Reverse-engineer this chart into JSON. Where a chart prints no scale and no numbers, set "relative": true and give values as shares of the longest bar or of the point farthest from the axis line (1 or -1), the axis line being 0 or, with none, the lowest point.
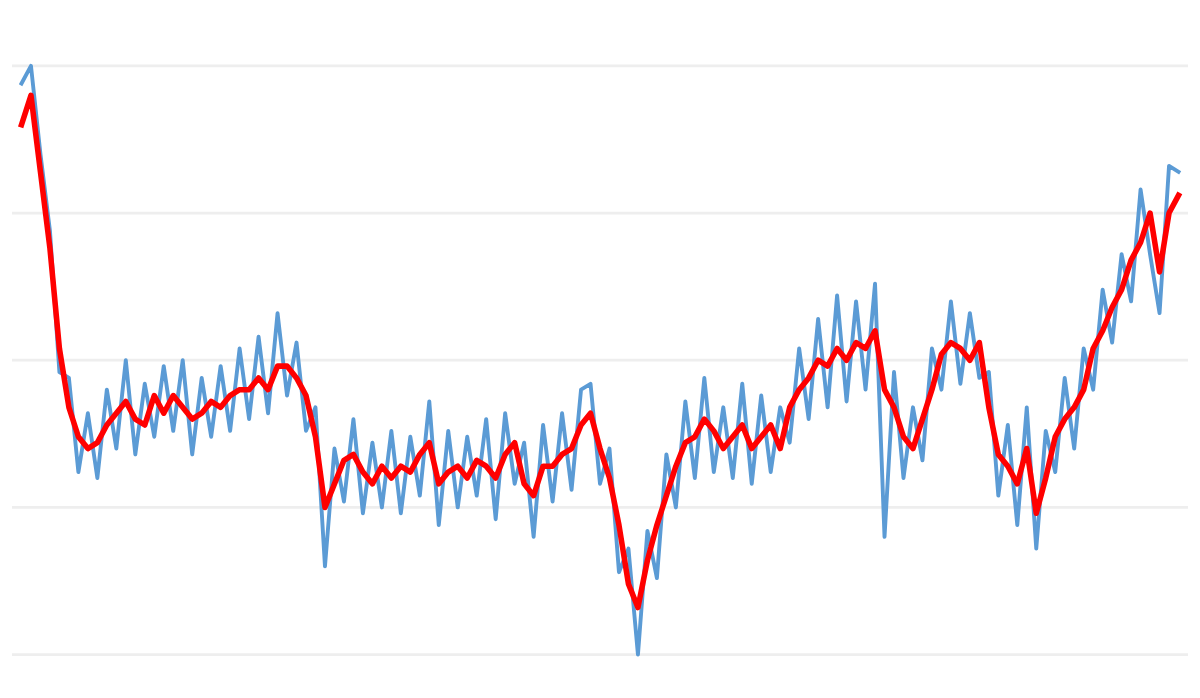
{
  "chart_data": {
    "type": "line",
    "relative": true,
    "grid": "y",
    "tick_labels": false,
    "categories": [
      null,
      null,
      null,
      null,
      null,
      null,
      null,
      null,
      null,
      null,
      null,
      null,
      null,
      null,
      null,
      null,
      null,
      null,
      null,
      null,
      null,
      null,
      null,
      null,
      null,
      null,
      null,
      null,
      null,
      null,
      null,
      null,
      null,
      null,
      null,
      null,
      null,
      null,
      null,
      null,
      null,
      null,
      null,
      null,
      null,
      null,
      null,
      null,
      null,
      null,
      null,
      null,
      null,
      null,
      null,
      null,
      null,
      null,
      null,
      null,
      null,
      null,
      null,
      null,
      null,
      null,
      null,
      null,
      null,
      null,
      null,
      null,
      null,
      null,
      null,
      null,
      null,
      null,
      null,
      null,
      null,
      null,
      null,
      null,
      null,
      null,
      null,
      null,
      null,
      null,
      null,
      null,
      null,
      null,
      null,
      null,
      null,
      null,
      null,
      null,
      null,
      null,
      null,
      null,
      null,
      null,
      null,
      null,
      null,
      null,
      null,
      null,
      null,
      null,
      null,
      null,
      null,
      null,
      null,
      null,
      null,
      null,
      null
    ],
    "series": [
      {
        "color": "#5b9bd5",
        "values": [
          0.97,
          1.0,
          0.85,
          0.72,
          0.48,
          0.47,
          0.31,
          0.41,
          0.3,
          0.45,
          0.35,
          0.5,
          0.34,
          0.46,
          0.37,
          0.49,
          0.38,
          0.5,
          0.34,
          0.47,
          0.37,
          0.49,
          0.38,
          0.52,
          0.4,
          0.54,
          0.41,
          0.58,
          0.44,
          0.53,
          0.38,
          0.42,
          0.15,
          0.35,
          0.26,
          0.4,
          0.24,
          0.36,
          0.25,
          0.38,
          0.24,
          0.37,
          0.27,
          0.43,
          0.22,
          0.38,
          0.25,
          0.37,
          0.27,
          0.4,
          0.23,
          0.41,
          0.29,
          0.36,
          0.2,
          0.39,
          0.26,
          0.41,
          0.28,
          0.45,
          0.46,
          0.29,
          0.35,
          0.14,
          0.18,
          0.0,
          0.21,
          0.13,
          0.34,
          0.25,
          0.43,
          0.3,
          0.47,
          0.31,
          0.42,
          0.3,
          0.46,
          0.29,
          0.44,
          0.31,
          0.42,
          0.36,
          0.52,
          0.4,
          0.57,
          0.42,
          0.61,
          0.43,
          0.6,
          0.45,
          0.63,
          0.2,
          0.48,
          0.3,
          0.42,
          0.33,
          0.52,
          0.45,
          0.6,
          0.46,
          0.58,
          0.47,
          0.48,
          0.27,
          0.39,
          0.22,
          0.42,
          0.18,
          0.38,
          0.31,
          0.47,
          0.35,
          0.52,
          0.45,
          0.62,
          0.53,
          0.68,
          0.6,
          0.79,
          0.68,
          0.58,
          0.83,
          0.82
        ]
      },
      {
        "color": "#ff0000",
        "values": [
          0.9,
          0.95,
          0.82,
          0.69,
          0.52,
          0.42,
          0.37,
          0.35,
          0.36,
          0.39,
          0.41,
          0.43,
          0.4,
          0.39,
          0.44,
          0.41,
          0.44,
          0.42,
          0.4,
          0.41,
          0.43,
          0.42,
          0.44,
          0.45,
          0.45,
          0.47,
          0.45,
          0.49,
          0.49,
          0.47,
          0.44,
          0.37,
          0.25,
          0.29,
          0.33,
          0.34,
          0.31,
          0.29,
          0.32,
          0.3,
          0.32,
          0.31,
          0.34,
          0.36,
          0.29,
          0.31,
          0.32,
          0.3,
          0.33,
          0.32,
          0.3,
          0.34,
          0.36,
          0.29,
          0.27,
          0.32,
          0.32,
          0.34,
          0.35,
          0.39,
          0.41,
          0.35,
          0.3,
          0.22,
          0.12,
          0.08,
          0.16,
          0.22,
          0.27,
          0.32,
          0.36,
          0.37,
          0.4,
          0.38,
          0.35,
          0.37,
          0.39,
          0.35,
          0.37,
          0.39,
          0.35,
          0.42,
          0.45,
          0.47,
          0.5,
          0.49,
          0.52,
          0.5,
          0.53,
          0.52,
          0.55,
          0.45,
          0.42,
          0.37,
          0.35,
          0.4,
          0.45,
          0.51,
          0.53,
          0.52,
          0.5,
          0.53,
          0.42,
          0.34,
          0.32,
          0.29,
          0.35,
          0.24,
          0.3,
          0.37,
          0.4,
          0.42,
          0.45,
          0.52,
          0.55,
          0.59,
          0.62,
          0.67,
          0.7,
          0.75,
          0.65,
          0.75,
          0.78
        ]
      }
    ]
  }
}
